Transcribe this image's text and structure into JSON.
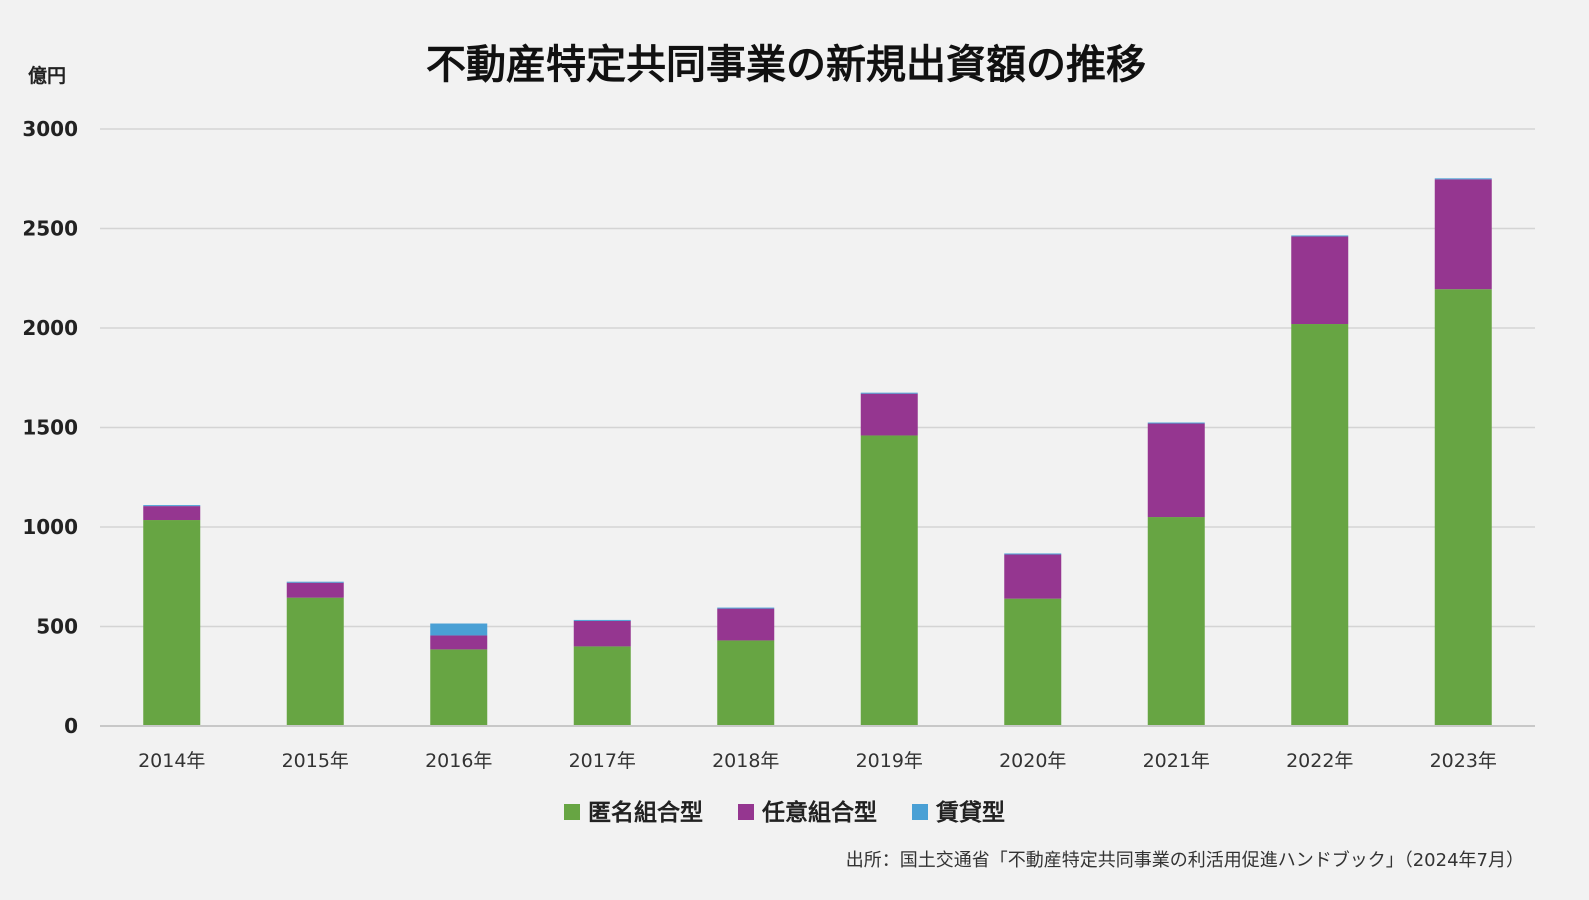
{
  "chart_data": {
    "type": "bar",
    "stacked": true,
    "title": "不動産特定共同事業の新規出資額の推移",
    "unit_label": "億円",
    "categories": [
      "2014年",
      "2015年",
      "2016年",
      "2017年",
      "2018年",
      "2019年",
      "2020年",
      "2021年",
      "2022年",
      "2023年"
    ],
    "series": [
      {
        "name": "匿名組合型",
        "color": "#67a543",
        "values": [
          1035,
          645,
          385,
          400,
          430,
          1460,
          640,
          1050,
          2020,
          2195
        ]
      },
      {
        "name": "任意組合型",
        "color": "#953690",
        "values": [
          70,
          75,
          70,
          128,
          160,
          210,
          222,
          470,
          440,
          552
        ]
      },
      {
        "name": "賃貸型",
        "color": "#4aa0d5",
        "values": [
          5,
          5,
          60,
          5,
          5,
          5,
          5,
          5,
          5,
          5
        ]
      }
    ],
    "yticks": [
      0,
      500,
      1000,
      1500,
      2000,
      2500,
      3000
    ],
    "ylim": [
      0,
      3000
    ],
    "grid": true,
    "legend_position": "bottom-center",
    "xlabel": "",
    "ylabel": ""
  },
  "source": "出所：国土交通省「不動産特定共同事業の利活用促進ハンドブック」（2024年7月）"
}
